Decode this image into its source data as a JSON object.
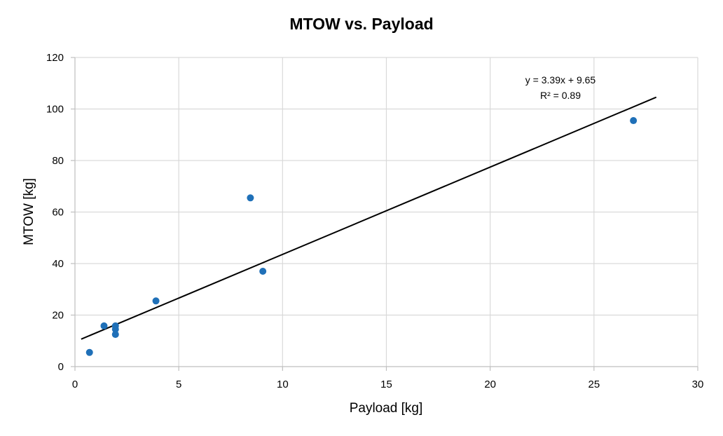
{
  "chart_data": {
    "type": "scatter",
    "title": "MTOW vs. Payload",
    "xlabel": "Payload [kg]",
    "ylabel": "MTOW [kg]",
    "xlim": [
      0,
      30
    ],
    "ylim": [
      0,
      120
    ],
    "x_ticks": [
      "0",
      "5",
      "10",
      "15",
      "20",
      "25",
      "30"
    ],
    "y_ticks": [
      "0",
      "20",
      "40",
      "60",
      "80",
      "100",
      "120"
    ],
    "grid": true,
    "legend": "none",
    "series": [
      {
        "color": "#1f70b8",
        "points": [
          {
            "x": 0.7,
            "y": 5.5
          },
          {
            "x": 1.4,
            "y": 15.8
          },
          {
            "x": 1.95,
            "y": 15.8
          },
          {
            "x": 1.95,
            "y": 14.5
          },
          {
            "x": 1.95,
            "y": 12.5
          },
          {
            "x": 3.9,
            "y": 25.5
          },
          {
            "x": 8.45,
            "y": 65.5
          },
          {
            "x": 9.05,
            "y": 37.0
          },
          {
            "x": 26.9,
            "y": 95.5
          }
        ]
      }
    ],
    "trendline": {
      "type": "linear",
      "slope": 3.39,
      "intercept": 9.65,
      "x_range": [
        0.3,
        28
      ],
      "color": "#000000",
      "equation_label": "y = 3.39x + 9.65",
      "r2_label": "R² = 0.89"
    }
  }
}
